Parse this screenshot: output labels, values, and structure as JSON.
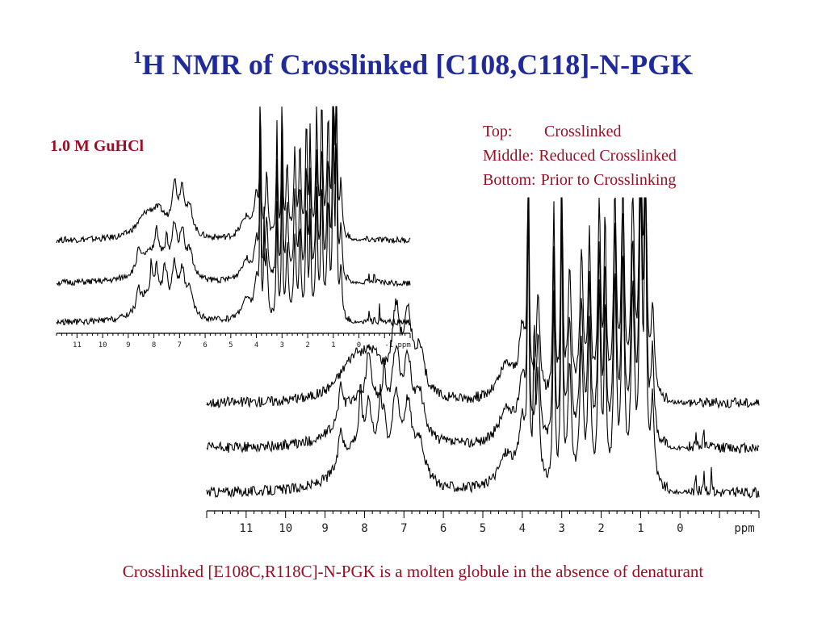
{
  "title_sup": "1",
  "title_main": "H NMR of Crosslinked [C108,C118]-N-PGK",
  "condition_label": "1.0 M GuHCl",
  "legend": [
    {
      "key": "Top:",
      "value": "Crosslinked"
    },
    {
      "key": "Middle:",
      "value": "Reduced Crosslinked"
    },
    {
      "key": "Bottom:",
      "value": "Prior to Crosslinking"
    }
  ],
  "caption": "Crosslinked [E108C,R118C]-N-PGK is a molten globule in the absence of denaturant",
  "chart_data": [
    {
      "type": "line",
      "title": "",
      "condition": "1.0 M GuHCl",
      "xlabel": "ppm",
      "x_ticks": [
        "11",
        "10",
        "9",
        "8",
        "7",
        "6",
        "5",
        "4",
        "3",
        "2",
        "1",
        "0",
        "-1 ppm"
      ],
      "xlim": [
        11.8,
        -2.0
      ],
      "x_reversed": true,
      "series": [
        {
          "name": "Top: Crosslinked"
        },
        {
          "name": "Middle: Reduced Crosslinked"
        },
        {
          "name": "Bottom: Prior to Crosslinking"
        }
      ]
    },
    {
      "type": "line",
      "title": "",
      "xlabel": "ppm",
      "x_ticks": [
        "11",
        "10",
        "9",
        "8",
        "7",
        "6",
        "5",
        "4",
        "3",
        "2",
        "1",
        "0",
        "ppm"
      ],
      "xlim": [
        12.0,
        -2.0
      ],
      "x_reversed": true,
      "series": [
        {
          "name": "Top: Crosslinked"
        },
        {
          "name": "Middle: Reduced Crosslinked"
        },
        {
          "name": "Bottom: Prior to Crosslinking"
        }
      ]
    }
  ]
}
